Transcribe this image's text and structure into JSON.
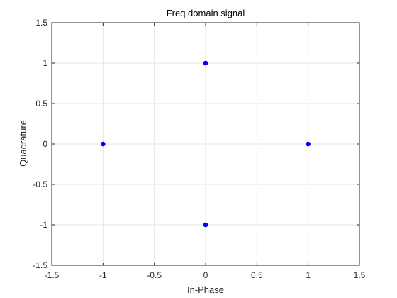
{
  "chart_data": {
    "type": "scatter",
    "title": "Freq domain signal",
    "xlabel": "In-Phase",
    "ylabel": "Quadrature",
    "xlim": [
      -1.5,
      1.5
    ],
    "ylim": [
      -1.5,
      1.5
    ],
    "xticks": [
      -1.5,
      -1,
      -0.5,
      0,
      0.5,
      1,
      1.5
    ],
    "yticks": [
      -1.5,
      -1,
      -0.5,
      0,
      0.5,
      1,
      1.5
    ],
    "xtick_labels": [
      "-1.5",
      "-1",
      "-0.5",
      "0",
      "0.5",
      "1",
      "1.5"
    ],
    "ytick_labels": [
      "-1.5",
      "-1",
      "-0.5",
      "0",
      "0.5",
      "1",
      "1.5"
    ],
    "grid": true,
    "marker_color": "#0000ff",
    "axis_color": "#262626",
    "grid_color": "#e6e6e6",
    "series": [
      {
        "points": [
          {
            "x": 0,
            "y": 1
          },
          {
            "x": -1,
            "y": 0
          },
          {
            "x": 1,
            "y": 0
          },
          {
            "x": 0,
            "y": -1
          }
        ]
      }
    ]
  }
}
